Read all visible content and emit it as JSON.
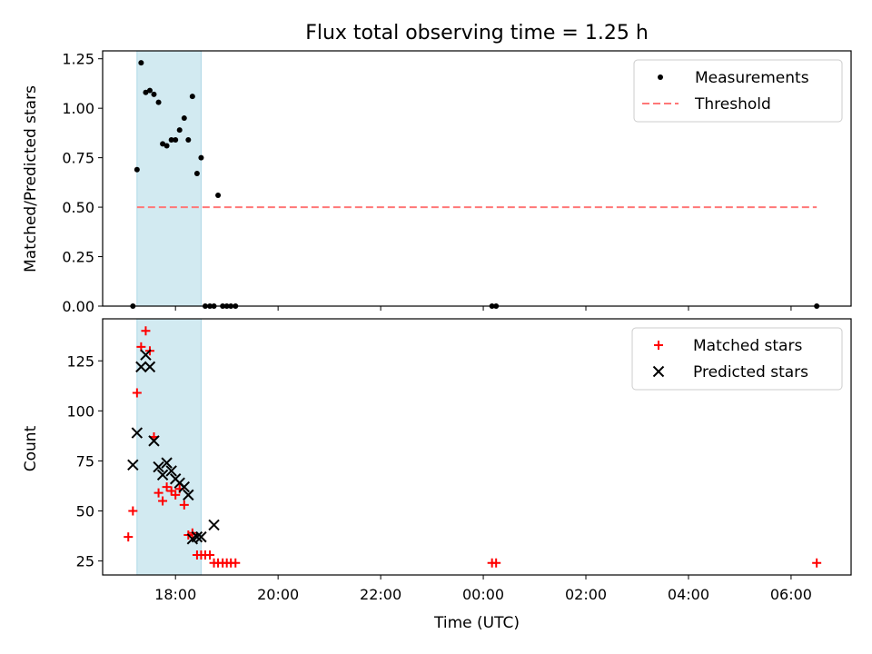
{
  "chart_data": {
    "title": "Flux total observing time = 1.25 h",
    "xlabel": "Time (UTC)",
    "x_ticks": [
      "18:00",
      "20:00",
      "22:00",
      "00:00",
      "02:00",
      "04:00",
      "06:00"
    ],
    "x_tick_hours": [
      18,
      20,
      22,
      24,
      26,
      28,
      30
    ],
    "xlim_hours": [
      16.58,
      31.17
    ],
    "shaded_span_hours": [
      17.25,
      18.5
    ],
    "shade_color": "#add8e6",
    "panels": [
      {
        "type": "scatter",
        "ylabel": "Matched/Predicted stars",
        "ylim": [
          0,
          1.29
        ],
        "y_ticks": [
          0.0,
          0.25,
          0.5,
          0.75,
          1.0,
          1.25
        ],
        "y_tick_labels": [
          "0.00",
          "0.25",
          "0.50",
          "0.75",
          "1.00",
          "1.25"
        ],
        "legend": {
          "location": "upper right",
          "entries": [
            "Measurements",
            "Threshold"
          ]
        },
        "series": [
          {
            "name": "Measurements",
            "marker": "dot",
            "color": "#000000",
            "x": [
              17.25,
              17.33,
              17.42,
              17.5,
              17.58,
              17.67,
              17.75,
              17.83,
              17.92,
              18.0,
              18.08,
              18.17,
              18.25,
              18.33,
              18.42,
              18.5,
              17.17,
              18.58,
              18.67,
              18.75,
              18.83,
              18.92,
              19.0,
              19.08,
              19.17,
              24.17,
              24.25,
              30.5
            ],
            "y": [
              0.69,
              1.23,
              1.08,
              1.09,
              1.07,
              1.03,
              0.82,
              0.81,
              0.84,
              0.84,
              0.89,
              0.95,
              0.84,
              1.06,
              0.67,
              0.75,
              0.0,
              0.0,
              0.0,
              0.0,
              0.56,
              0.0,
              0.0,
              0.0,
              0.0,
              0.0,
              0.0,
              0.0
            ]
          },
          {
            "name": "Threshold",
            "style": "dashed",
            "color": "#ff7777",
            "x": [
              17.25,
              30.5
            ],
            "y": [
              0.5,
              0.5
            ]
          }
        ]
      },
      {
        "type": "scatter",
        "ylabel": "Count",
        "ylim": [
          18,
          146
        ],
        "y_ticks": [
          25,
          50,
          75,
          100,
          125
        ],
        "y_tick_labels": [
          "25",
          "50",
          "75",
          "100",
          "125"
        ],
        "legend": {
          "location": "upper right",
          "entries": [
            "Matched stars",
            "Predicted stars"
          ]
        },
        "series": [
          {
            "name": "Matched stars",
            "marker": "plus",
            "color": "#ff0000",
            "x": [
              17.08,
              17.17,
              17.25,
              17.33,
              17.42,
              17.5,
              17.58,
              17.67,
              17.75,
              17.83,
              17.92,
              18.0,
              18.08,
              18.17,
              18.25,
              18.33,
              18.42,
              18.5,
              18.58,
              18.67,
              18.75,
              18.83,
              18.92,
              19.0,
              19.08,
              19.17,
              24.17,
              24.25,
              30.5
            ],
            "y": [
              37,
              50,
              109,
              132,
              140,
              130,
              87,
              59,
              55,
              62,
              60,
              58,
              61,
              53,
              38,
              39,
              28,
              28,
              28,
              28,
              24,
              24,
              24,
              24,
              24,
              24,
              24,
              24,
              24
            ]
          },
          {
            "name": "Predicted stars",
            "marker": "x",
            "color": "#000000",
            "x": [
              17.17,
              17.25,
              17.33,
              17.42,
              17.5,
              17.58,
              17.67,
              17.75,
              17.83,
              17.92,
              18.0,
              18.08,
              18.17,
              18.25,
              18.33,
              18.42,
              18.5,
              18.75
            ],
            "y": [
              73,
              89,
              122,
              128,
              122,
              85,
              72,
              68,
              74,
              70,
              66,
              64,
              62,
              58,
              36,
              37,
              37,
              43
            ]
          }
        ]
      }
    ]
  }
}
